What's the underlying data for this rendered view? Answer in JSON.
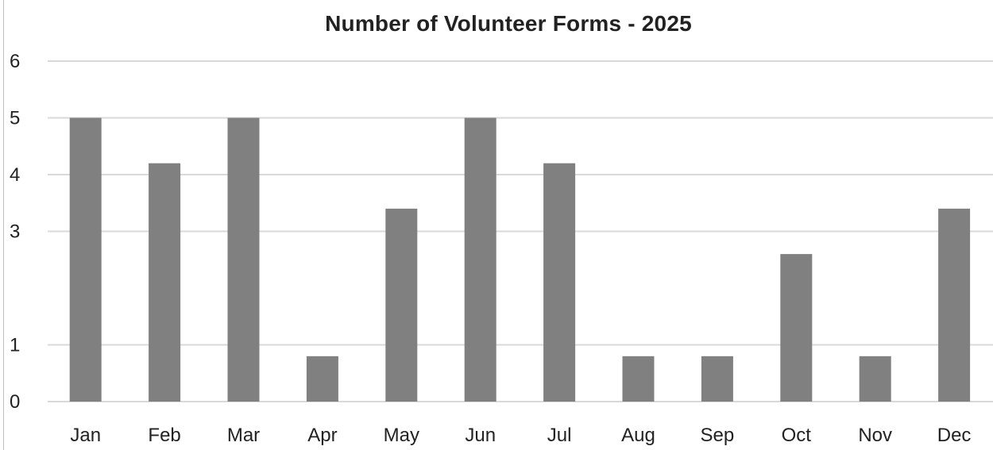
{
  "chart_data": {
    "type": "bar",
    "title": "Number of Volunteer Forms - 2025",
    "xlabel": "",
    "ylabel": "",
    "categories": [
      "Jan",
      "Feb",
      "Mar",
      "Apr",
      "May",
      "Jun",
      "Jul",
      "Aug",
      "Sep",
      "Oct",
      "Nov",
      "Dec"
    ],
    "values": [
      5,
      4.2,
      5,
      0.8,
      3.4,
      5,
      4.2,
      0.8,
      0.8,
      2.6,
      0.8,
      3.4
    ],
    "y_ticks": [
      "0",
      "1",
      "3",
      "4",
      "5",
      "6"
    ],
    "ylim": [
      0,
      6
    ],
    "grid": true,
    "legend": "none",
    "bar_color": "#808080",
    "grid_color": "#d9d9d9"
  }
}
